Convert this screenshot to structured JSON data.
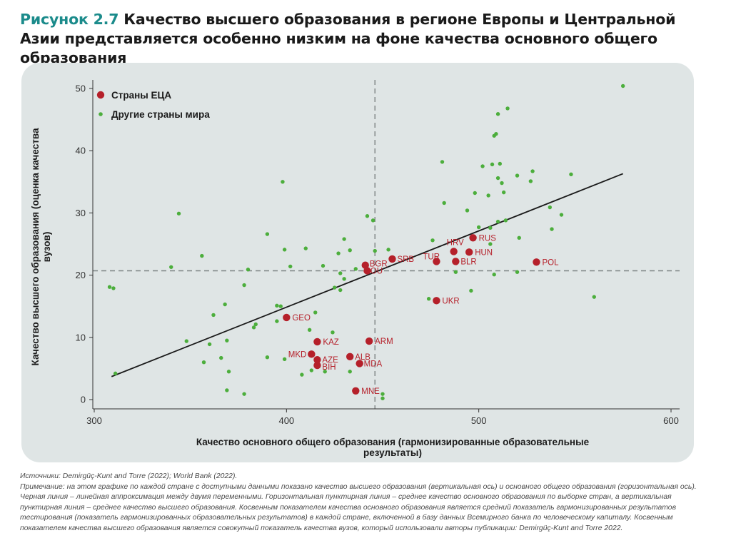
{
  "title": {
    "figure_label": "Рисунок 2.7",
    "text": "Качество высшего образования в регионе Европы и Центральной Азии представляется особенно низким на фоне качества основного общего образования"
  },
  "source": {
    "sources": "Источники: Demirgüç-Kunt and Torre (2022); World Bank (2022).",
    "note": "Примечание: на этом графике по каждой стране с доступными данными показано качество высшего образования (вертикальная ось) и основного общего образования (горизонтальная ось). Черная линия – линейная аппроксимация между двумя переменными. Горизонтальная пунктирная линия – среднее качество основного образования по выборке стран, а вертикальная пунктирная линия – среднее качество высшего образования. Косвенным показателем качества основного образования является средний показатель гармонизированных результатов тестирования (показатель гармонизированных образовательных результатов) в каждой стране, включенной в базу данных Всемирного банка по человеческому капиталу. Косвенным показателем качества высшего образования является совокупный показатель качества вузов, который использовали авторы публикации: Demirgüç-Kunt and Torre 2022."
  },
  "chart_data": {
    "type": "scatter",
    "xlabel": "Качество основного общего образования (гармонизированные образовательные результаты)",
    "ylabel": "Качество высшего образования (оценка качества вузов)",
    "xlim": [
      300,
      600
    ],
    "ylim": [
      0,
      50
    ],
    "xticks": [
      300,
      400,
      500,
      600
    ],
    "yticks": [
      0,
      10,
      20,
      30,
      40,
      50
    ],
    "legend_placement": "top-left",
    "colors": {
      "eca": "#b5202a",
      "other": "#4cae3c",
      "fit": "#1a1a1a",
      "ref": "#7d8484",
      "panel": "#dfe5e5"
    },
    "reference_lines": {
      "horizontal_y": 20.7,
      "vertical_x": 446
    },
    "fit_line": {
      "x": [
        309,
        575
      ],
      "y": [
        3.7,
        36.3
      ]
    },
    "series": [
      {
        "name": "Страны ЕЦА",
        "key": "eca",
        "points": [
          {
            "label": "RUS",
            "x": 497,
            "y": 26
          },
          {
            "label": "HRV",
            "x": 487,
            "y": 23.8
          },
          {
            "label": "HUN",
            "x": 495,
            "y": 23.7
          },
          {
            "label": "TUR",
            "x": 478,
            "y": 22.2
          },
          {
            "label": "BLR",
            "x": 488,
            "y": 22.2
          },
          {
            "label": "POL",
            "x": 530,
            "y": 22.1
          },
          {
            "label": "SRB",
            "x": 455,
            "y": 22.6
          },
          {
            "label": "BGR",
            "x": 441,
            "y": 21.6
          },
          {
            "label": "ROU",
            "x": 442,
            "y": 20.7
          },
          {
            "label": "UKR",
            "x": 478,
            "y": 15.9
          },
          {
            "label": "GEO",
            "x": 400,
            "y": 13.2
          },
          {
            "label": "KAZ",
            "x": 416,
            "y": 9.3
          },
          {
            "label": "ARM",
            "x": 443,
            "y": 9.4
          },
          {
            "label": "MKD",
            "x": 413,
            "y": 7.3
          },
          {
            "label": "ALB",
            "x": 433,
            "y": 6.9
          },
          {
            "label": "AZE",
            "x": 416,
            "y": 6.4
          },
          {
            "label": "MDA",
            "x": 438,
            "y": 5.8
          },
          {
            "label": "BIH",
            "x": 416,
            "y": 5.5
          },
          {
            "label": "MNE",
            "x": 436,
            "y": 1.4
          }
        ]
      },
      {
        "name": "Другие страны мира",
        "key": "other",
        "points": [
          [
            575,
            50.4
          ],
          [
            515,
            46.8
          ],
          [
            510,
            45.9
          ],
          [
            508,
            42.4
          ],
          [
            509,
            42.7
          ],
          [
            502,
            37.5
          ],
          [
            481,
            38.2
          ],
          [
            507,
            37.8
          ],
          [
            511,
            37.9
          ],
          [
            528,
            36.7
          ],
          [
            548,
            36.2
          ],
          [
            510,
            35.6
          ],
          [
            512,
            34.8
          ],
          [
            527,
            35.1
          ],
          [
            498,
            33.2
          ],
          [
            505,
            32.8
          ],
          [
            513,
            33.3
          ],
          [
            520,
            36.0
          ],
          [
            537,
            30.9
          ],
          [
            543,
            29.7
          ],
          [
            494,
            30.4
          ],
          [
            476,
            25.6
          ],
          [
            510,
            28.6
          ],
          [
            514,
            28.8
          ],
          [
            500,
            27.7
          ],
          [
            506,
            27.6
          ],
          [
            538,
            27.4
          ],
          [
            521,
            26.0
          ],
          [
            506,
            25.0
          ],
          [
            344,
            29.9
          ],
          [
            398,
            35.0
          ],
          [
            390,
            26.6
          ],
          [
            430,
            25.8
          ],
          [
            445,
            28.8
          ],
          [
            442,
            29.5
          ],
          [
            482,
            31.6
          ],
          [
            340,
            21.3
          ],
          [
            356,
            23.1
          ],
          [
            399,
            24.1
          ],
          [
            410,
            24.3
          ],
          [
            427,
            23.5
          ],
          [
            433,
            24.0
          ],
          [
            446,
            23.9
          ],
          [
            453,
            24.1
          ],
          [
            380,
            20.9
          ],
          [
            378,
            18.4
          ],
          [
            402,
            21.4
          ],
          [
            419,
            21.5
          ],
          [
            428,
            20.3
          ],
          [
            430,
            19.4
          ],
          [
            436,
            21.0
          ],
          [
            425,
            18.0
          ],
          [
            428,
            17.6
          ],
          [
            308,
            18.1
          ],
          [
            310,
            17.9
          ],
          [
            474,
            16.2
          ],
          [
            488,
            20.5
          ],
          [
            496,
            17.5
          ],
          [
            520,
            20.5
          ],
          [
            560,
            16.5
          ],
          [
            508,
            20.1
          ],
          [
            368,
            15.3
          ],
          [
            362,
            13.6
          ],
          [
            384,
            12.1
          ],
          [
            395,
            15.1
          ],
          [
            397,
            15.0
          ],
          [
            415,
            14.0
          ],
          [
            395,
            12.6
          ],
          [
            383,
            11.6
          ],
          [
            348,
            9.4
          ],
          [
            369,
            9.5
          ],
          [
            360,
            8.9
          ],
          [
            412,
            11.2
          ],
          [
            424,
            10.8
          ],
          [
            366,
            6.7
          ],
          [
            370,
            4.5
          ],
          [
            357,
            6.0
          ],
          [
            390,
            6.8
          ],
          [
            413,
            4.7
          ],
          [
            408,
            4.0
          ],
          [
            399,
            6.5
          ],
          [
            420,
            4.5
          ],
          [
            433,
            4.5
          ],
          [
            450,
            0.9
          ],
          [
            450,
            0.2
          ],
          [
            369,
            1.5
          ],
          [
            378,
            0.9
          ],
          [
            311,
            4.2
          ]
        ]
      }
    ]
  }
}
